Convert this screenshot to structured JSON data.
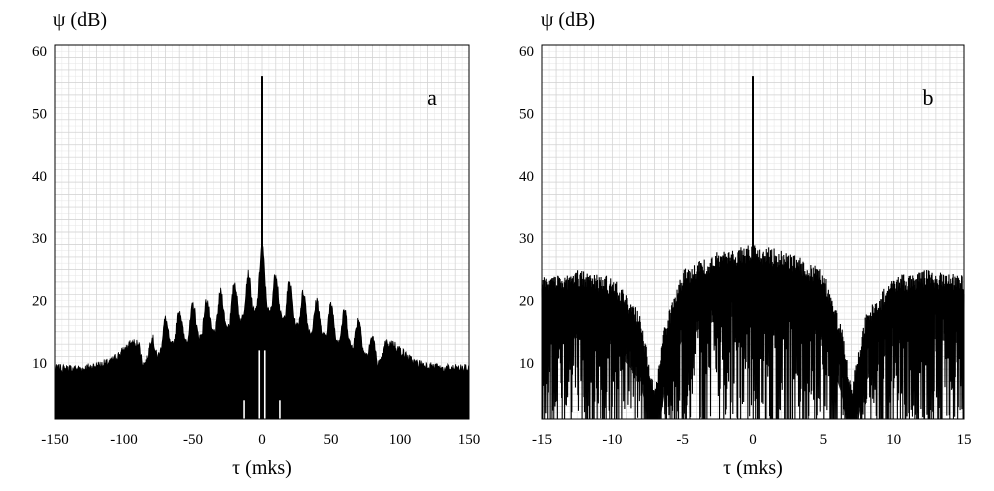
{
  "chart_data": [
    {
      "type": "line",
      "panel_label": "a",
      "ylabel": "ψ (dB)",
      "xlabel": "τ (mks)",
      "xlim": [
        -150,
        150
      ],
      "ylim": [
        1,
        61
      ],
      "xticks": [
        "-150",
        "-100",
        "-50",
        "0",
        "50",
        "100",
        "150"
      ],
      "yticks": [
        "10",
        "20",
        "30",
        "40",
        "50",
        "60"
      ],
      "grid": true,
      "peak": {
        "x": 0,
        "y": 56
      },
      "series": [
        {
          "envelope_x": [
            -150,
            -130,
            -110,
            -95,
            -80,
            -70,
            -55,
            -40,
            -25,
            -12,
            -5,
            0,
            5,
            12,
            25,
            40,
            55,
            70,
            80,
            95,
            110,
            130,
            150
          ],
          "envelope_y": [
            9,
            9,
            10,
            13,
            14,
            17,
            19,
            20,
            22,
            24,
            25,
            29,
            25,
            24,
            22,
            20,
            19,
            17,
            14,
            13,
            10,
            9,
            9
          ],
          "lobe_spacing": 10
        }
      ]
    },
    {
      "type": "line",
      "panel_label": "b",
      "ylabel": "ψ (dB)",
      "xlabel": "τ (mks)",
      "xlim": [
        -15,
        15
      ],
      "ylim": [
        1,
        61
      ],
      "xticks": [
        "-15",
        "-10",
        "-5",
        "0",
        "5",
        "10",
        "15"
      ],
      "yticks": [
        "10",
        "20",
        "30",
        "40",
        "50",
        "60"
      ],
      "grid": true,
      "peak": {
        "x": 0,
        "y": 56
      },
      "series": [
        {
          "envelope_x": [
            -15,
            -12.5,
            -10,
            -8,
            -7,
            -6.3,
            -5,
            -2.5,
            0,
            2.5,
            5,
            6.3,
            7,
            8,
            10,
            12.5,
            15
          ],
          "envelope_y": [
            24,
            25,
            24,
            18,
            6,
            16,
            25,
            28,
            29,
            28,
            25,
            16,
            6,
            18,
            24,
            25,
            24
          ],
          "lobe_spacing": 0.15
        }
      ]
    }
  ]
}
